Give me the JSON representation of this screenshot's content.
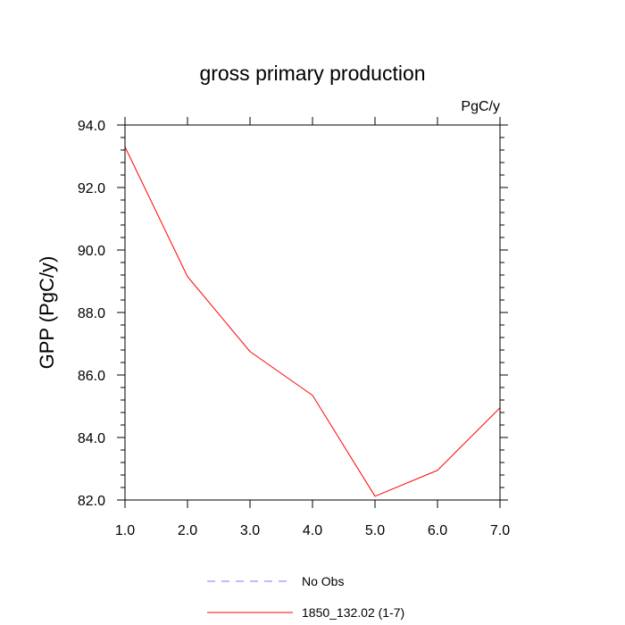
{
  "chart_data": {
    "type": "line",
    "title": "gross primary production",
    "units_label": "PgC/y",
    "ylabel": "GPP  (PgC/y)",
    "xlabel": "",
    "xlim": [
      1,
      7
    ],
    "ylim": [
      82,
      94
    ],
    "xticks": [
      "1.0",
      "2.0",
      "3.0",
      "4.0",
      "5.0",
      "6.0",
      "7.0"
    ],
    "yticks": [
      "82.0",
      "84.0",
      "86.0",
      "88.0",
      "90.0",
      "92.0",
      "94.0"
    ],
    "grid": false,
    "legend_position": "bottom",
    "series": [
      {
        "name": "1850_132.02 (1-7)",
        "color": "#ff0000",
        "style": "solid",
        "x": [
          1,
          2,
          3,
          4,
          5,
          6,
          7
        ],
        "y": [
          93.3,
          89.15,
          86.75,
          85.35,
          82.12,
          82.95,
          84.95
        ]
      },
      {
        "name": "No Obs",
        "color": "#7b7bff",
        "style": "dashed",
        "x": [],
        "y": []
      }
    ]
  }
}
